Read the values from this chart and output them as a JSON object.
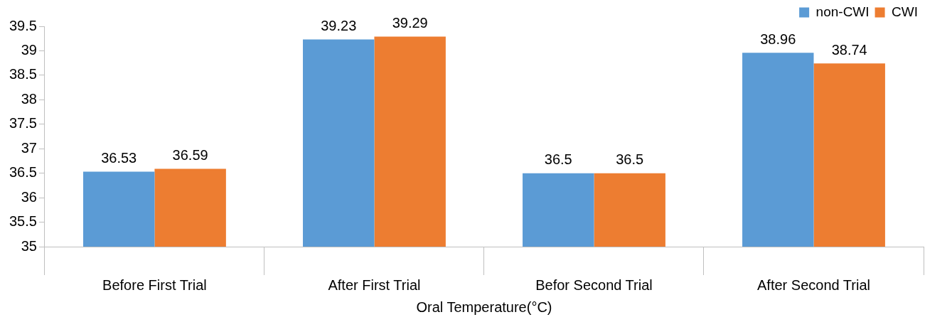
{
  "chart_data": {
    "type": "bar",
    "xlabel": "Oral Temperature(°C)",
    "categories": [
      "Before First Trial",
      "After First Trial",
      "Befor Second Trial",
      "After Second Trial"
    ],
    "series": [
      {
        "name": "non-CWI",
        "color": "#5b9bd5",
        "values": [
          36.53,
          39.23,
          36.5,
          38.96
        ]
      },
      {
        "name": "CWI",
        "color": "#ed7d31",
        "values": [
          36.59,
          39.29,
          36.5,
          38.74
        ]
      }
    ],
    "ylim": [
      35,
      39.5
    ],
    "yticks": [
      35,
      35.5,
      36,
      36.5,
      37,
      37.5,
      38,
      38.5,
      39,
      39.5
    ],
    "grid": false,
    "legend": "top right",
    "data_labels": true
  }
}
